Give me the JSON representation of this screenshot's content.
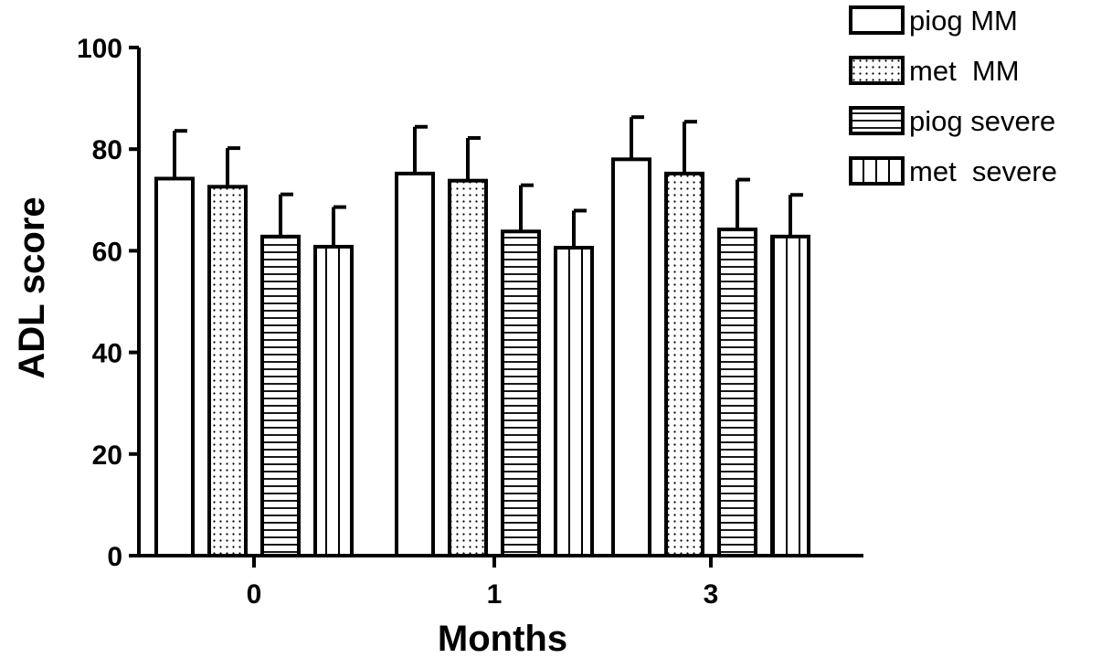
{
  "chart_data": {
    "type": "bar",
    "title": "",
    "xlabel": "Months",
    "ylabel": "ADL score",
    "ylim": [
      0,
      100
    ],
    "yticks": [
      0,
      20,
      40,
      60,
      80,
      100
    ],
    "categories": [
      "0",
      "1",
      "3"
    ],
    "grid": false,
    "legend_position": "top-right",
    "series": [
      {
        "name": "piog MM",
        "pattern": "blank",
        "values": [
          74.2,
          75.2,
          78.0
        ],
        "errors": [
          9.4,
          9.2,
          8.3
        ]
      },
      {
        "name": "met  MM",
        "pattern": "dots",
        "values": [
          72.6,
          73.8,
          75.2
        ],
        "errors": [
          7.6,
          8.4,
          10.2
        ]
      },
      {
        "name": "piog severe",
        "pattern": "horizontal-lines",
        "values": [
          62.8,
          63.8,
          64.2
        ],
        "errors": [
          8.3,
          9.1,
          9.8
        ]
      },
      {
        "name": "met  severe",
        "pattern": "vertical-lines",
        "values": [
          60.8,
          60.6,
          62.8
        ],
        "errors": [
          7.8,
          7.3,
          8.2
        ]
      }
    ],
    "colors": {
      "stroke": "#000000",
      "fill": "#ffffff"
    }
  }
}
